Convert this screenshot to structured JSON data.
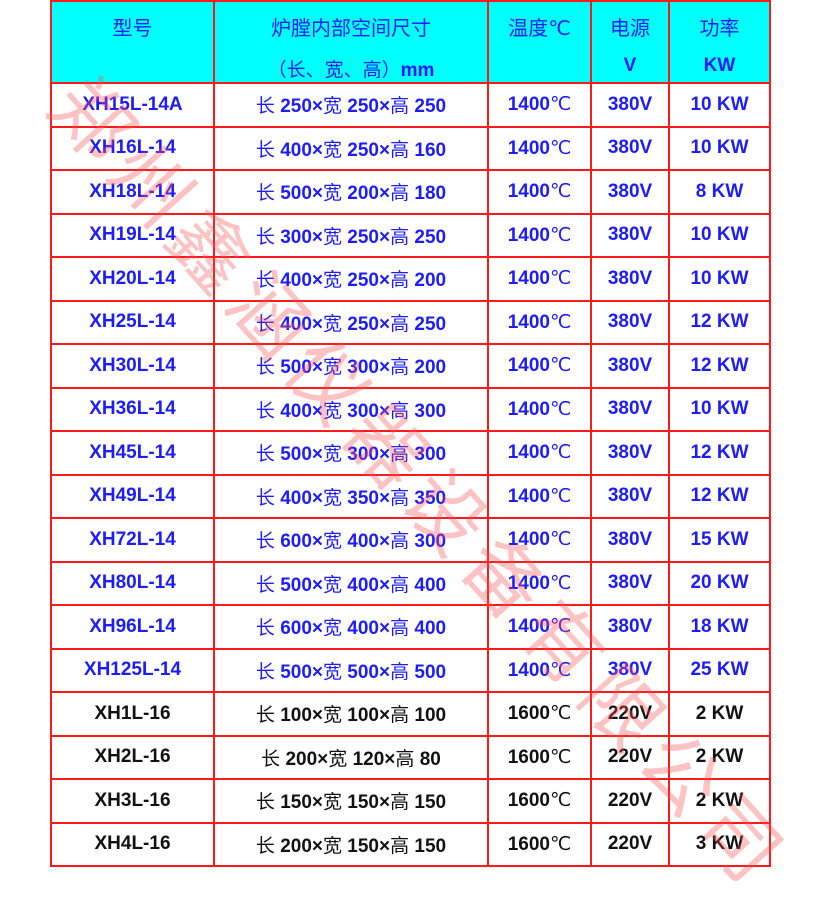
{
  "watermark": "郑州鑫涵仪器设备有限公司",
  "colors": {
    "header_bg": "#00ffff",
    "border": "#ff1a1a",
    "text_blue": "#1c1cff",
    "text_black": "#111111"
  },
  "header": {
    "model": "型号",
    "size_l1": "炉膛内部空间尺寸",
    "size_l2_cn": "（长、宽、高）",
    "size_l2_unit": "mm",
    "temp": "温度℃",
    "power_l1": "电源",
    "power_l2": "V",
    "rating_l1": "功率",
    "rating_l2": "KW"
  },
  "rows": [
    {
      "model": "XH15L-14A",
      "l": "250",
      "w": "250",
      "h": "250",
      "temp": "1400",
      "volt": "380V",
      "kw": "10 KW",
      "style": "blue"
    },
    {
      "model": "XH16L-14",
      "l": "400",
      "w": "250",
      "h": "160",
      "temp": "1400",
      "volt": "380V",
      "kw": "10 KW",
      "style": "blue"
    },
    {
      "model": "XH18L-14",
      "l": "500",
      "w": "200",
      "h": "180",
      "temp": "1400",
      "volt": "380V",
      "kw": "8 KW",
      "style": "blue"
    },
    {
      "model": "XH19L-14",
      "l": "300",
      "w": "250",
      "h": "250",
      "temp": "1400",
      "volt": "380V",
      "kw": "10 KW",
      "style": "blue"
    },
    {
      "model": "XH20L-14",
      "l": "400",
      "w": "250",
      "h": "200",
      "temp": "1400",
      "volt": "380V",
      "kw": "10 KW",
      "style": "blue"
    },
    {
      "model": "XH25L-14",
      "l": "400",
      "w": "250",
      "h": "250",
      "temp": "1400",
      "volt": "380V",
      "kw": "12 KW",
      "style": "blue"
    },
    {
      "model": "XH30L-14",
      "l": "500",
      "w": "300",
      "h": "200",
      "temp": "1400",
      "volt": "380V",
      "kw": "12 KW",
      "style": "blue"
    },
    {
      "model": "XH36L-14",
      "l": "400",
      "w": "300",
      "h": "300",
      "temp": "1400",
      "volt": "380V",
      "kw": "10 KW",
      "style": "blue"
    },
    {
      "model": "XH45L-14",
      "l": "500",
      "w": "300",
      "h": "300",
      "temp": "1400",
      "volt": "380V",
      "kw": "12 KW",
      "style": "blue"
    },
    {
      "model": "XH49L-14",
      "l": "400",
      "w": "350",
      "h": "350",
      "temp": "1400",
      "volt": "380V",
      "kw": "12 KW",
      "style": "blue"
    },
    {
      "model": "XH72L-14",
      "l": "600",
      "w": "400",
      "h": "300",
      "temp": "1400",
      "volt": "380V",
      "kw": "15 KW",
      "style": "blue"
    },
    {
      "model": "XH80L-14",
      "l": "500",
      "w": "400",
      "h": "400",
      "temp": "1400",
      "volt": "380V",
      "kw": "20 KW",
      "style": "blue"
    },
    {
      "model": "XH96L-14",
      "l": "600",
      "w": "400",
      "h": "400",
      "temp": "1400",
      "volt": "380V",
      "kw": "18 KW",
      "style": "blue"
    },
    {
      "model": "XH125L-14",
      "l": "500",
      "w": "500",
      "h": "500",
      "temp": "1400",
      "volt": "380V",
      "kw": "25 KW",
      "style": "blue"
    },
    {
      "model": "XH1L-16",
      "l": "100",
      "w": "100",
      "h": "100",
      "temp": "1600",
      "volt": "220V",
      "kw": "2 KW",
      "style": "black"
    },
    {
      "model": "XH2L-16",
      "l": "200",
      "w": "120",
      "h": "80",
      "temp": "1600",
      "volt": "220V",
      "kw": "2 KW",
      "style": "black"
    },
    {
      "model": "XH3L-16",
      "l": "150",
      "w": "150",
      "h": "150",
      "temp": "1600",
      "volt": "220V",
      "kw": "2 KW",
      "style": "black"
    },
    {
      "model": "XH4L-16",
      "l": "200",
      "w": "150",
      "h": "150",
      "temp": "1600",
      "volt": "220V",
      "kw": "3 KW",
      "style": "black"
    }
  ],
  "labels": {
    "length": "长",
    "width": "宽",
    "height": "高",
    "times": "×",
    "degree": "℃"
  }
}
